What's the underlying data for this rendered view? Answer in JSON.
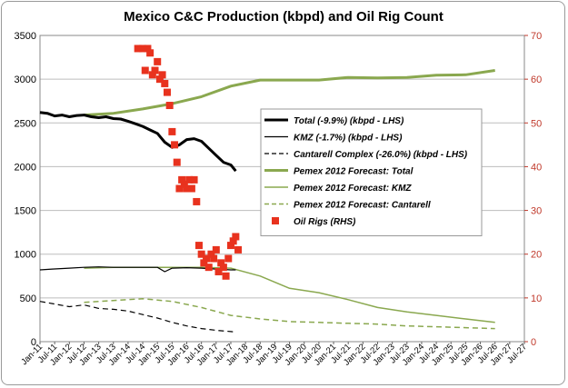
{
  "chart_data": {
    "type": "line",
    "title": "Mexico C&C Production (kbpd) and Oil Rig Count",
    "xlabel": "",
    "ylabel": "",
    "y2label": "",
    "x_range": [
      "2011-01",
      "2027-07"
    ],
    "ylim": [
      0,
      3500
    ],
    "y2lim": [
      0,
      70
    ],
    "y_ticks": [
      "0",
      "500",
      "1000",
      "1500",
      "2000",
      "2500",
      "3000",
      "3500"
    ],
    "y2_ticks": [
      "0",
      "10",
      "20",
      "30",
      "40",
      "50",
      "60",
      "70"
    ],
    "x_ticks": [
      "Jan-11",
      "Jul-11",
      "Jan-12",
      "Jul-12",
      "Jan-13",
      "Jul-13",
      "Jan-14",
      "Jul-14",
      "Jan-15",
      "Jul-15",
      "Jan-16",
      "Jul-16",
      "Jan-17",
      "Jul-17",
      "Jan-18",
      "Jul-18",
      "Jan-19",
      "Jul-19",
      "Jan-20",
      "Jul-20",
      "Jan-21",
      "Jul-21",
      "Jan-22",
      "Jul-22",
      "Jan-23",
      "Jul-23",
      "Jan-24",
      "Jul-24",
      "Jan-25",
      "Jul-25",
      "Jan-26",
      "Jul-26",
      "Jan-27",
      "Jul-27"
    ],
    "grid": "horizontal",
    "legend_position": "center-right",
    "series": [
      {
        "name": "Total (-9.9%) (kbpd - LHS)",
        "axis": "left",
        "color": "#000000",
        "style": "solid",
        "width": 3,
        "points": [
          [
            "2011-01",
            2620
          ],
          [
            "2011-04",
            2610
          ],
          [
            "2011-07",
            2580
          ],
          [
            "2011-10",
            2590
          ],
          [
            "2012-01",
            2570
          ],
          [
            "2012-04",
            2585
          ],
          [
            "2012-07",
            2590
          ],
          [
            "2012-10",
            2570
          ],
          [
            "2013-01",
            2560
          ],
          [
            "2013-04",
            2570
          ],
          [
            "2013-07",
            2550
          ],
          [
            "2013-10",
            2545
          ],
          [
            "2014-01",
            2520
          ],
          [
            "2014-04",
            2490
          ],
          [
            "2014-07",
            2460
          ],
          [
            "2014-10",
            2420
          ],
          [
            "2015-01",
            2380
          ],
          [
            "2015-04",
            2280
          ],
          [
            "2015-07",
            2220
          ],
          [
            "2015-10",
            2250
          ],
          [
            "2016-01",
            2310
          ],
          [
            "2016-04",
            2320
          ],
          [
            "2016-07",
            2290
          ],
          [
            "2016-10",
            2210
          ],
          [
            "2017-01",
            2130
          ],
          [
            "2017-04",
            2050
          ],
          [
            "2017-07",
            2020
          ],
          [
            "2017-09",
            1950
          ]
        ]
      },
      {
        "name": "KMZ (-1.7%) (kbpd - LHS)",
        "axis": "left",
        "color": "#000000",
        "style": "solid",
        "width": 1.2,
        "points": [
          [
            "2011-01",
            820
          ],
          [
            "2011-06",
            830
          ],
          [
            "2012-01",
            840
          ],
          [
            "2012-07",
            850
          ],
          [
            "2013-01",
            855
          ],
          [
            "2013-07",
            850
          ],
          [
            "2014-01",
            850
          ],
          [
            "2014-07",
            850
          ],
          [
            "2015-01",
            850
          ],
          [
            "2015-04",
            800
          ],
          [
            "2015-07",
            840
          ],
          [
            "2016-01",
            845
          ],
          [
            "2016-07",
            840
          ],
          [
            "2017-01",
            830
          ],
          [
            "2017-07",
            820
          ],
          [
            "2017-09",
            820
          ]
        ]
      },
      {
        "name": "Cantarell Complex (-26.0%) (kbpd - LHS)",
        "axis": "left",
        "color": "#000000",
        "style": "dashed",
        "width": 1.2,
        "points": [
          [
            "2011-01",
            460
          ],
          [
            "2011-07",
            430
          ],
          [
            "2012-01",
            400
          ],
          [
            "2012-07",
            420
          ],
          [
            "2013-01",
            380
          ],
          [
            "2013-07",
            370
          ],
          [
            "2014-01",
            350
          ],
          [
            "2014-07",
            310
          ],
          [
            "2015-01",
            270
          ],
          [
            "2015-07",
            220
          ],
          [
            "2016-01",
            180
          ],
          [
            "2016-07",
            150
          ],
          [
            "2017-01",
            130
          ],
          [
            "2017-07",
            115
          ],
          [
            "2017-09",
            110
          ]
        ]
      },
      {
        "name": "Pemex 2012 Forecast: Total",
        "axis": "left",
        "color": "#8aa84f",
        "style": "solid",
        "width": 3,
        "points": [
          [
            "2012-07",
            2590
          ],
          [
            "2013-07",
            2610
          ],
          [
            "2014-07",
            2660
          ],
          [
            "2015-07",
            2720
          ],
          [
            "2016-07",
            2800
          ],
          [
            "2017-07",
            2920
          ],
          [
            "2018-07",
            2990
          ],
          [
            "2019-07",
            2990
          ],
          [
            "2020-07",
            2990
          ],
          [
            "2021-07",
            3020
          ],
          [
            "2022-07",
            3015
          ],
          [
            "2023-07",
            3020
          ],
          [
            "2024-07",
            3045
          ],
          [
            "2025-07",
            3050
          ],
          [
            "2026-07",
            3100
          ]
        ]
      },
      {
        "name": "Pemex 2012 Forecast: KMZ",
        "axis": "left",
        "color": "#8aa84f",
        "style": "solid",
        "width": 1.5,
        "points": [
          [
            "2012-07",
            840
          ],
          [
            "2013-07",
            850
          ],
          [
            "2014-07",
            850
          ],
          [
            "2015-07",
            850
          ],
          [
            "2016-07",
            850
          ],
          [
            "2017-07",
            840
          ],
          [
            "2018-07",
            750
          ],
          [
            "2019-07",
            610
          ],
          [
            "2020-07",
            560
          ],
          [
            "2021-07",
            480
          ],
          [
            "2022-07",
            390
          ],
          [
            "2023-07",
            340
          ],
          [
            "2024-07",
            300
          ],
          [
            "2025-07",
            260
          ],
          [
            "2026-07",
            220
          ]
        ]
      },
      {
        "name": "Pemex 2012 Forecast: Cantarell",
        "axis": "left",
        "color": "#8aa84f",
        "style": "dashed",
        "width": 1.5,
        "points": [
          [
            "2012-07",
            450
          ],
          [
            "2013-07",
            470
          ],
          [
            "2014-07",
            490
          ],
          [
            "2015-07",
            460
          ],
          [
            "2016-07",
            390
          ],
          [
            "2017-07",
            300
          ],
          [
            "2018-07",
            260
          ],
          [
            "2019-07",
            230
          ],
          [
            "2020-07",
            220
          ],
          [
            "2021-07",
            210
          ],
          [
            "2022-07",
            200
          ],
          [
            "2023-07",
            180
          ],
          [
            "2024-07",
            170
          ],
          [
            "2025-07",
            160
          ],
          [
            "2026-07",
            150
          ]
        ]
      },
      {
        "name": "Oil Rigs (RHS)",
        "axis": "right",
        "color": "#e8321e",
        "style": "markers",
        "points": [
          [
            "2014-05",
            67
          ],
          [
            "2014-07",
            67
          ],
          [
            "2014-09",
            67
          ],
          [
            "2014-10",
            66
          ],
          [
            "2014-08",
            62
          ],
          [
            "2014-11",
            61
          ],
          [
            "2014-12",
            62
          ],
          [
            "2015-01",
            64
          ],
          [
            "2015-02",
            60
          ],
          [
            "2015-03",
            61
          ],
          [
            "2015-04",
            59
          ],
          [
            "2015-05",
            57
          ],
          [
            "2015-06",
            54
          ],
          [
            "2015-07",
            48
          ],
          [
            "2015-08",
            45
          ],
          [
            "2015-09",
            41
          ],
          [
            "2015-10",
            35
          ],
          [
            "2015-11",
            37
          ],
          [
            "2015-12",
            36
          ],
          [
            "2016-01",
            35
          ],
          [
            "2016-02",
            37
          ],
          [
            "2016-03",
            35
          ],
          [
            "2016-04",
            37
          ],
          [
            "2016-05",
            32
          ],
          [
            "2016-06",
            22
          ],
          [
            "2016-07",
            20
          ],
          [
            "2016-08",
            18
          ],
          [
            "2016-09",
            19
          ],
          [
            "2016-10",
            17
          ],
          [
            "2016-11",
            20
          ],
          [
            "2016-12",
            19
          ],
          [
            "2017-01",
            21
          ],
          [
            "2017-02",
            16
          ],
          [
            "2017-03",
            18
          ],
          [
            "2017-04",
            17
          ],
          [
            "2017-05",
            15
          ],
          [
            "2017-06",
            19
          ],
          [
            "2017-07",
            22
          ],
          [
            "2017-08",
            23
          ],
          [
            "2017-09",
            24
          ],
          [
            "2017-10",
            21
          ]
        ]
      }
    ]
  }
}
